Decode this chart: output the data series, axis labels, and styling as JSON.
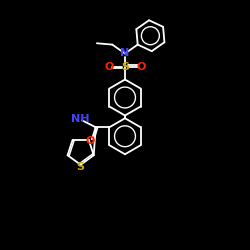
{
  "background_color": "#000000",
  "bond_color": "#ffffff",
  "atom_colors": {
    "N": "#4444ff",
    "O": "#ff2200",
    "S_sulfonyl": "#ccaa00",
    "S_thiophene": "#ccaa00",
    "NH": "#4444ff"
  },
  "figsize": [
    2.5,
    2.5
  ],
  "dpi": 100,
  "scale": 10
}
